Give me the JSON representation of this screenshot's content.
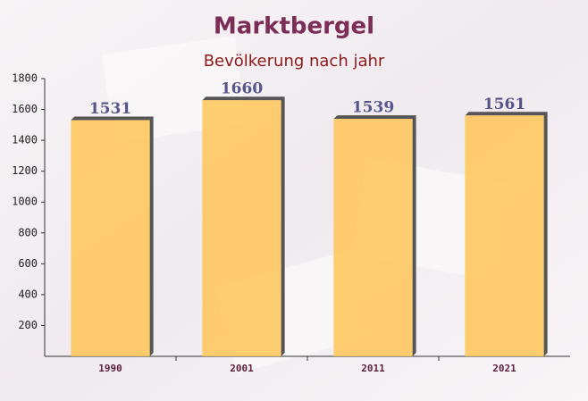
{
  "chart_data": {
    "type": "bar",
    "title": "Marktbergel",
    "subtitle": "Bevölkerung nach jahr",
    "categories": [
      "1990",
      "2001",
      "2011",
      "2021"
    ],
    "values": [
      1531,
      1660,
      1539,
      1561
    ],
    "color": "#ffc557",
    "ylim": [
      0,
      1800
    ],
    "yticks": [
      200,
      400,
      600,
      800,
      1000,
      1200,
      1400,
      1600,
      1800
    ]
  }
}
